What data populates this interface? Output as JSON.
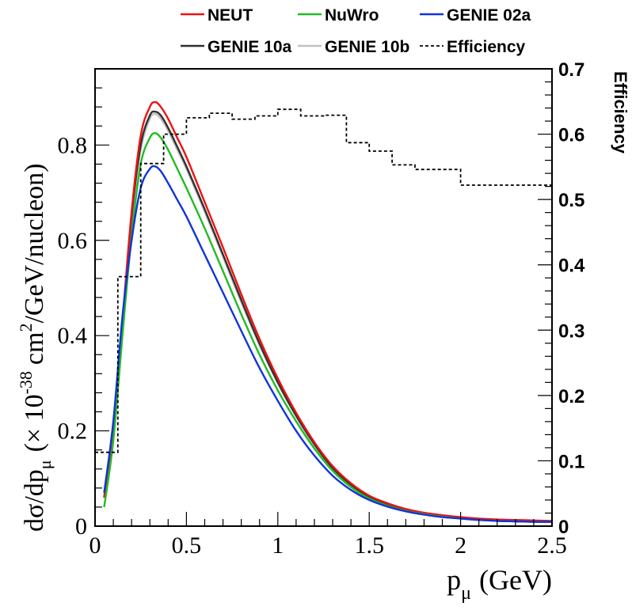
{
  "chart_data": {
    "type": "line",
    "title": "",
    "xlabel": "p",
    "xlabel_sub": "μ",
    "xlabel_unit": "(GeV)",
    "ylabel": {
      "base": "dσ/dp",
      "sub": "μ",
      "mid": "(× 10",
      "sup": "-38",
      "mid2": "cm",
      "sup2": "2",
      "tail": "/GeV/nucleon)"
    },
    "ylabel_right": "Efficiency",
    "xlim": [
      0,
      2.5
    ],
    "ylim": [
      0,
      0.96
    ],
    "ylim_right": [
      0,
      0.7
    ],
    "x_ticks": [
      {
        "value": 0,
        "label": "0"
      },
      {
        "value": 0.5,
        "label": "0.5"
      },
      {
        "value": 1,
        "label": "1"
      },
      {
        "value": 1.5,
        "label": "1.5"
      },
      {
        "value": 2,
        "label": "2"
      },
      {
        "value": 2.5,
        "label": "2.5"
      }
    ],
    "y_ticks": [
      {
        "value": 0,
        "label": "0"
      },
      {
        "value": 0.2,
        "label": "0.2"
      },
      {
        "value": 0.4,
        "label": "0.4"
      },
      {
        "value": 0.6,
        "label": "0.6"
      },
      {
        "value": 0.8,
        "label": "0.8"
      }
    ],
    "y_right_ticks": [
      {
        "value": 0,
        "label": "0"
      },
      {
        "value": 0.1,
        "label": "0.1"
      },
      {
        "value": 0.2,
        "label": "0.2"
      },
      {
        "value": 0.3,
        "label": "0.3"
      },
      {
        "value": 0.4,
        "label": "0.4"
      },
      {
        "value": 0.5,
        "label": "0.5"
      },
      {
        "value": 0.6,
        "label": "0.6"
      },
      {
        "value": 0.7,
        "label": "0.7"
      }
    ],
    "legend_position": "top",
    "series": [
      {
        "name": "GENIE 10b",
        "color": "#c0c0c0",
        "style": "solid",
        "axis": "left",
        "x": [
          0.05,
          0.1,
          0.15,
          0.2,
          0.25,
          0.3,
          0.33,
          0.36,
          0.4,
          0.45,
          0.5,
          0.6,
          0.7,
          0.8,
          0.9,
          1.0,
          1.1,
          1.2,
          1.3,
          1.4,
          1.5,
          1.6,
          1.7,
          1.8,
          1.9,
          2.0,
          2.1,
          2.2,
          2.3,
          2.4,
          2.5
        ],
        "values": [
          0.06,
          0.2,
          0.42,
          0.64,
          0.79,
          0.855,
          0.865,
          0.855,
          0.83,
          0.79,
          0.75,
          0.66,
          0.565,
          0.47,
          0.38,
          0.3,
          0.23,
          0.17,
          0.12,
          0.085,
          0.06,
          0.045,
          0.034,
          0.026,
          0.021,
          0.017,
          0.014,
          0.012,
          0.011,
          0.01,
          0.01
        ]
      },
      {
        "name": "GENIE 10a",
        "color": "#303030",
        "style": "solid",
        "axis": "left",
        "x": [
          0.05,
          0.1,
          0.15,
          0.2,
          0.25,
          0.3,
          0.33,
          0.36,
          0.4,
          0.45,
          0.5,
          0.6,
          0.7,
          0.8,
          0.9,
          1.0,
          1.1,
          1.2,
          1.3,
          1.4,
          1.5,
          1.6,
          1.7,
          1.8,
          1.9,
          2.0,
          2.1,
          2.2,
          2.3,
          2.4,
          2.5
        ],
        "values": [
          0.06,
          0.2,
          0.42,
          0.65,
          0.8,
          0.862,
          0.87,
          0.862,
          0.836,
          0.796,
          0.755,
          0.665,
          0.57,
          0.475,
          0.383,
          0.302,
          0.232,
          0.172,
          0.122,
          0.087,
          0.062,
          0.046,
          0.035,
          0.027,
          0.022,
          0.018,
          0.015,
          0.013,
          0.012,
          0.011,
          0.01
        ]
      },
      {
        "name": "NEUT",
        "color": "#ee1111",
        "style": "solid",
        "axis": "left",
        "x": [
          0.05,
          0.1,
          0.15,
          0.2,
          0.25,
          0.3,
          0.33,
          0.36,
          0.4,
          0.45,
          0.5,
          0.6,
          0.7,
          0.8,
          0.9,
          1.0,
          1.1,
          1.2,
          1.3,
          1.4,
          1.5,
          1.6,
          1.7,
          1.8,
          1.9,
          2.0,
          2.1,
          2.2,
          2.3,
          2.4,
          2.5
        ],
        "values": [
          0.06,
          0.2,
          0.43,
          0.66,
          0.82,
          0.88,
          0.89,
          0.88,
          0.855,
          0.815,
          0.775,
          0.68,
          0.585,
          0.487,
          0.393,
          0.31,
          0.238,
          0.176,
          0.126,
          0.09,
          0.064,
          0.048,
          0.036,
          0.028,
          0.023,
          0.019,
          0.016,
          0.014,
          0.013,
          0.012,
          0.011
        ]
      },
      {
        "name": "NuWro",
        "color": "#22bb22",
        "style": "solid",
        "axis": "left",
        "x": [
          0.05,
          0.1,
          0.15,
          0.2,
          0.25,
          0.3,
          0.33,
          0.36,
          0.4,
          0.45,
          0.5,
          0.6,
          0.7,
          0.8,
          0.9,
          1.0,
          1.1,
          1.2,
          1.3,
          1.4,
          1.5,
          1.6,
          1.7,
          1.8,
          1.9,
          2.0,
          2.1,
          2.2,
          2.3,
          2.4,
          2.5
        ],
        "values": [
          0.04,
          0.18,
          0.4,
          0.61,
          0.76,
          0.815,
          0.825,
          0.815,
          0.79,
          0.75,
          0.71,
          0.625,
          0.535,
          0.445,
          0.36,
          0.285,
          0.22,
          0.163,
          0.116,
          0.082,
          0.058,
          0.043,
          0.032,
          0.025,
          0.02,
          0.016,
          0.013,
          0.011,
          0.01,
          0.009,
          0.009
        ]
      },
      {
        "name": "GENIE 02a",
        "color": "#1133dd",
        "style": "solid",
        "axis": "left",
        "x": [
          0.05,
          0.1,
          0.15,
          0.2,
          0.25,
          0.3,
          0.33,
          0.36,
          0.4,
          0.45,
          0.5,
          0.6,
          0.7,
          0.8,
          0.9,
          1.0,
          1.1,
          1.2,
          1.3,
          1.4,
          1.5,
          1.6,
          1.7,
          1.8,
          1.9,
          2.0,
          2.1,
          2.2,
          2.3,
          2.4,
          2.5
        ],
        "values": [
          0.07,
          0.22,
          0.44,
          0.6,
          0.71,
          0.75,
          0.755,
          0.745,
          0.72,
          0.685,
          0.65,
          0.57,
          0.49,
          0.41,
          0.332,
          0.263,
          0.2,
          0.148,
          0.106,
          0.076,
          0.055,
          0.041,
          0.031,
          0.024,
          0.019,
          0.016,
          0.013,
          0.011,
          0.01,
          0.009,
          0.009
        ]
      },
      {
        "name": "Efficiency",
        "color": "#000000",
        "style": "dashed-step",
        "axis": "right",
        "bins": [
          0,
          0.125,
          0.25,
          0.375,
          0.5,
          0.625,
          0.75,
          0.875,
          1.0,
          1.125,
          1.25,
          1.375,
          1.5,
          1.625,
          1.75,
          1.875,
          2.0,
          2.25,
          2.5
        ],
        "values": [
          0.113,
          0.382,
          0.555,
          0.6,
          0.625,
          0.632,
          0.623,
          0.628,
          0.638,
          0.628,
          0.629,
          0.587,
          0.574,
          0.553,
          0.546,
          0.546,
          0.522,
          0.522
        ]
      }
    ],
    "legend": [
      {
        "name": "NEUT",
        "color": "#ee1111",
        "style": "solid"
      },
      {
        "name": "NuWro",
        "color": "#22bb22",
        "style": "solid"
      },
      {
        "name": "GENIE 02a",
        "color": "#1133dd",
        "style": "solid"
      },
      {
        "name": "GENIE 10a",
        "color": "#303030",
        "style": "solid"
      },
      {
        "name": "GENIE 10b",
        "color": "#c0c0c0",
        "style": "solid"
      },
      {
        "name": "Efficiency",
        "color": "#000000",
        "style": "dashed"
      }
    ]
  }
}
